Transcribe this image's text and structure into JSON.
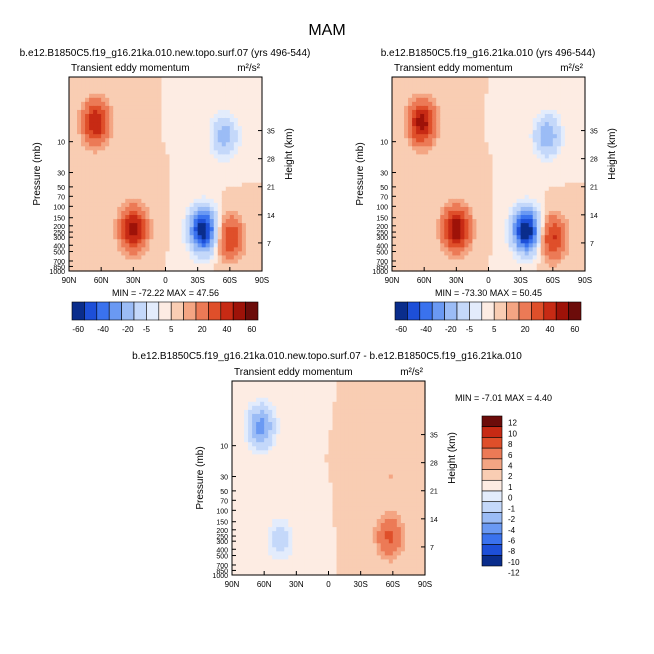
{
  "figure": {
    "title": "MAM"
  },
  "colors": {
    "palette10": [
      "#0a2d8c",
      "#1d4fd8",
      "#3a72ee",
      "#6a99f3",
      "#9bbcf6",
      "#c4d8fa",
      "#e3ecfc",
      "#fdece3",
      "#f9cdb3",
      "#f4a583",
      "#ec7a56",
      "#df4f2a",
      "#c72a14",
      "#9e1208",
      "#6c0c0a"
    ],
    "palette_diff": [
      "#0a2d8c",
      "#1d4fd8",
      "#3a72ee",
      "#6a99f3",
      "#9bbcf6",
      "#c4d8fa",
      "#e3ecfc",
      "#fdece3",
      "#f9cdb3",
      "#f4a583",
      "#ec7a56",
      "#df4f2a",
      "#c72a14",
      "#6c0c0a"
    ]
  },
  "chart_data": [
    {
      "type": "contour",
      "title": "b.e12.B1850C5.f19_g16.21ka.010.new.topo.surf.07 (yrs 496-544)",
      "subtitle": "Transient eddy momentum",
      "units": "m²/s²",
      "ylabel": "Pressure (mb)",
      "ylabel_right": "Height (km)",
      "x_ticks": [
        "90N",
        "60N",
        "30N",
        "0",
        "30S",
        "60S",
        "90S"
      ],
      "y_ticks": [
        "10",
        "30",
        "50",
        "70",
        "100",
        "150",
        "200",
        "250",
        "300",
        "400",
        "500",
        "700",
        "850",
        "1000"
      ],
      "y_right_ticks": [
        "35",
        "28",
        "21",
        "14",
        "7"
      ],
      "min_max": "MIN = -72.22   MAX =  47.56",
      "min": -72.22,
      "max": 47.56,
      "features": [
        {
          "lat": 65,
          "p": 5,
          "value": 40
        },
        {
          "lat": 30,
          "p": 220,
          "value": 45
        },
        {
          "lat": -35,
          "p": 230,
          "value": -70
        },
        {
          "lat": -55,
          "p": 8,
          "value": -25
        },
        {
          "lat": -60,
          "p": 300,
          "value": 30
        }
      ]
    },
    {
      "type": "contour",
      "title": "b.e12.B1850C5.f19_g16.21ka.010 (yrs 496-544)",
      "subtitle": "Transient eddy momentum",
      "units": "m²/s²",
      "ylabel": "Pressure (mb)",
      "ylabel_right": "Height (km)",
      "x_ticks": [
        "90N",
        "60N",
        "30N",
        "0",
        "30S",
        "60S",
        "90S"
      ],
      "y_ticks": [
        "10",
        "30",
        "50",
        "70",
        "100",
        "150",
        "200",
        "250",
        "300",
        "400",
        "500",
        "700",
        "850",
        "1000"
      ],
      "y_right_ticks": [
        "35",
        "28",
        "21",
        "14",
        "7"
      ],
      "min_max": "MIN = -73.30   MAX =  50.45",
      "min": -73.3,
      "max": 50.45,
      "features": [
        {
          "lat": 62,
          "p": 5,
          "value": 45
        },
        {
          "lat": 30,
          "p": 220,
          "value": 48
        },
        {
          "lat": -35,
          "p": 230,
          "value": -72
        },
        {
          "lat": -55,
          "p": 8,
          "value": -28
        },
        {
          "lat": -60,
          "p": 300,
          "value": 32
        }
      ]
    },
    {
      "type": "contour",
      "title": "b.e12.B1850C5.f19_g16.21ka.010.new.topo.surf.07 - b.e12.B1850C5.f19_g16.21ka.010",
      "subtitle": "Transient eddy momentum",
      "units": "m²/s²",
      "ylabel": "Pressure (mb)",
      "ylabel_right": "Height (km)",
      "x_ticks": [
        "90N",
        "60N",
        "30N",
        "0",
        "30S",
        "60S",
        "90S"
      ],
      "y_ticks": [
        "10",
        "30",
        "50",
        "70",
        "100",
        "150",
        "200",
        "250",
        "300",
        "400",
        "500",
        "700",
        "850",
        "1000"
      ],
      "y_right_ticks": [
        "35",
        "28",
        "21",
        "14",
        "7"
      ],
      "min_max": "MIN = -7.01   MAX =  4.40",
      "min": -7.01,
      "max": 4.4,
      "features": [
        {
          "lat": 63,
          "p": 5,
          "value": -7
        },
        {
          "lat": 45,
          "p": 280,
          "value": -3
        },
        {
          "lat": -57,
          "p": 250,
          "value": 4.4
        },
        {
          "lat": -58,
          "p": 30,
          "value": 1
        }
      ]
    }
  ],
  "colorbar_shared": {
    "labels": [
      "-60",
      "-40",
      "-20",
      "-5",
      "5",
      "20",
      "40",
      "60"
    ]
  },
  "colorbar_diff": {
    "labels": [
      "12",
      "10",
      "8",
      "6",
      "4",
      "2",
      "1",
      "0",
      "-1",
      "-2",
      "-4",
      "-6",
      "-8",
      "-10",
      "-12"
    ]
  }
}
